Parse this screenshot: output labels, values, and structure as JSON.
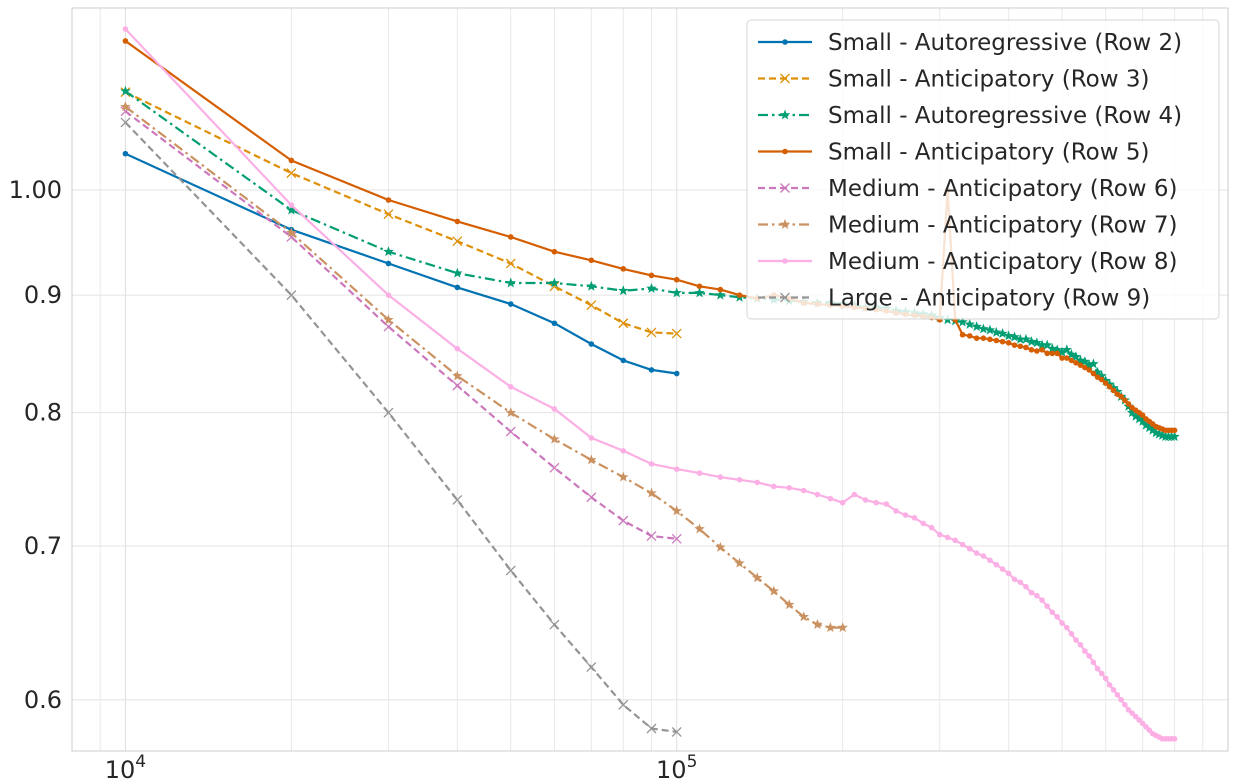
{
  "chart_data": {
    "type": "line",
    "title": "",
    "xlabel": "",
    "ylabel": "",
    "x_scale": "log",
    "y_scale": "log",
    "xlim": [
      8000,
      1000000
    ],
    "ylim": [
      0.57,
      1.2
    ],
    "x_ticks": [
      {
        "value": 10000,
        "base": "10",
        "exp": "4"
      },
      {
        "value": 100000,
        "base": "10",
        "exp": "5"
      }
    ],
    "y_ticks": [
      {
        "value": 0.6,
        "label": "0.6"
      },
      {
        "value": 0.7,
        "label": "0.7"
      },
      {
        "value": 0.8,
        "label": "0.8"
      },
      {
        "value": 0.9,
        "label": "0.9"
      },
      {
        "value": 1.0,
        "label": "1.00"
      }
    ],
    "grid": true,
    "legend_position": "top-right",
    "series": [
      {
        "name": "Small - Autoregressive (Row 2)",
        "color": "#0173b2",
        "dash": "solid",
        "marker": "dot",
        "x": [
          10000,
          20000,
          30000,
          40000,
          50000,
          60000,
          70000,
          80000,
          90000,
          100000
        ],
        "y": [
          1.037,
          0.961,
          0.929,
          0.907,
          0.892,
          0.875,
          0.857,
          0.843,
          0.835,
          0.832
        ]
      },
      {
        "name": "Small - Anticipatory (Row 3)",
        "color": "#de8f05",
        "dash": "dashed",
        "marker": "x",
        "x": [
          10000,
          20000,
          30000,
          40000,
          50000,
          60000,
          70000,
          80000,
          90000,
          100000
        ],
        "y": [
          1.103,
          1.017,
          0.976,
          0.95,
          0.929,
          0.908,
          0.891,
          0.875,
          0.867,
          0.866
        ]
      },
      {
        "name": "Small - Autoregressive (Row 4)",
        "color": "#029e73",
        "dash": "dashdot",
        "marker": "star",
        "x": [
          10000,
          20000,
          30000,
          40000,
          50000,
          60000,
          70000,
          80000,
          90000,
          100000,
          110000,
          120000,
          130000,
          140000,
          150000,
          160000,
          170000,
          180000,
          190000,
          200000,
          210000,
          220000,
          230000,
          240000,
          250000,
          260000,
          270000,
          280000,
          290000,
          300000,
          310000,
          320000,
          330000,
          340000,
          350000,
          360000,
          370000,
          380000,
          390000,
          400000,
          410000,
          420000,
          430000,
          440000,
          450000,
          460000,
          470000,
          480000,
          490000,
          500000,
          510000,
          520000,
          530000,
          540000,
          550000,
          560000,
          570000,
          580000,
          590000,
          600000,
          610000,
          620000,
          630000,
          640000,
          650000,
          660000,
          670000,
          680000,
          690000,
          700000,
          710000,
          720000,
          730000,
          740000,
          750000,
          760000,
          770000,
          780000,
          790000,
          800000
        ],
        "y": [
          1.104,
          0.98,
          0.94,
          0.92,
          0.911,
          0.911,
          0.908,
          0.904,
          0.906,
          0.902,
          0.902,
          0.9,
          0.898,
          0.897,
          0.896,
          0.895,
          0.894,
          0.893,
          0.893,
          0.892,
          0.891,
          0.889,
          0.889,
          0.888,
          0.886,
          0.885,
          0.884,
          0.883,
          0.882,
          0.88,
          0.878,
          0.877,
          0.876,
          0.874,
          0.872,
          0.87,
          0.869,
          0.867,
          0.866,
          0.864,
          0.863,
          0.861,
          0.861,
          0.859,
          0.858,
          0.856,
          0.856,
          0.853,
          0.852,
          0.85,
          0.852,
          0.848,
          0.846,
          0.843,
          0.842,
          0.839,
          0.84,
          0.833,
          0.83,
          0.826,
          0.823,
          0.82,
          0.817,
          0.813,
          0.81,
          0.805,
          0.8,
          0.797,
          0.795,
          0.793,
          0.79,
          0.788,
          0.786,
          0.784,
          0.783,
          0.782,
          0.781,
          0.781,
          0.781,
          0.781
        ]
      },
      {
        "name": "Small - Anticipatory (Row 5)",
        "color": "#d55e00",
        "dash": "solid",
        "marker": "dot",
        "x": [
          10000,
          20000,
          30000,
          40000,
          50000,
          60000,
          70000,
          80000,
          90000,
          100000,
          110000,
          120000,
          130000,
          140000,
          150000,
          160000,
          170000,
          180000,
          190000,
          200000,
          210000,
          220000,
          230000,
          240000,
          250000,
          260000,
          270000,
          280000,
          290000,
          300000,
          310000,
          320000,
          330000,
          340000,
          350000,
          360000,
          370000,
          380000,
          390000,
          400000,
          410000,
          420000,
          430000,
          440000,
          450000,
          460000,
          470000,
          480000,
          490000,
          500000,
          510000,
          520000,
          530000,
          540000,
          550000,
          560000,
          570000,
          580000,
          590000,
          600000,
          610000,
          620000,
          630000,
          640000,
          650000,
          660000,
          670000,
          680000,
          690000,
          700000,
          710000,
          720000,
          730000,
          740000,
          750000,
          760000,
          770000,
          780000,
          790000,
          800000
        ],
        "y": [
          1.161,
          1.03,
          0.99,
          0.969,
          0.954,
          0.94,
          0.932,
          0.924,
          0.918,
          0.914,
          0.908,
          0.905,
          0.9,
          0.897,
          0.9,
          0.897,
          0.893,
          0.892,
          0.891,
          0.89,
          0.889,
          0.888,
          0.887,
          0.886,
          0.884,
          0.883,
          0.882,
          0.881,
          0.88,
          0.878,
          1.0,
          0.878,
          0.865,
          0.864,
          0.862,
          0.862,
          0.861,
          0.86,
          0.859,
          0.858,
          0.856,
          0.855,
          0.854,
          0.852,
          0.851,
          0.852,
          0.849,
          0.849,
          0.849,
          0.845,
          0.845,
          0.843,
          0.841,
          0.839,
          0.837,
          0.835,
          0.832,
          0.829,
          0.827,
          0.824,
          0.821,
          0.818,
          0.815,
          0.813,
          0.81,
          0.807,
          0.804,
          0.802,
          0.8,
          0.798,
          0.795,
          0.793,
          0.791,
          0.789,
          0.788,
          0.787,
          0.786,
          0.786,
          0.786,
          0.786
        ]
      },
      {
        "name": "Medium - Anticipatory (Row 6)",
        "color": "#cc78bc",
        "dash": "dashed",
        "marker": "x",
        "x": [
          10000,
          20000,
          30000,
          40000,
          50000,
          60000,
          70000,
          80000,
          90000,
          100000
        ],
        "y": [
          1.082,
          0.954,
          0.872,
          0.822,
          0.785,
          0.757,
          0.735,
          0.718,
          0.707,
          0.705
        ]
      },
      {
        "name": "Medium - Anticipatory (Row 7)",
        "color": "#ca9161",
        "dash": "dashdot",
        "marker": "star",
        "x": [
          10000,
          20000,
          30000,
          40000,
          50000,
          60000,
          70000,
          80000,
          90000,
          100000,
          110000,
          120000,
          130000,
          140000,
          150000,
          160000,
          170000,
          180000,
          190000,
          200000
        ],
        "y": [
          1.087,
          0.958,
          0.878,
          0.83,
          0.8,
          0.779,
          0.763,
          0.75,
          0.738,
          0.725,
          0.712,
          0.699,
          0.688,
          0.678,
          0.669,
          0.66,
          0.652,
          0.647,
          0.645,
          0.645
        ]
      },
      {
        "name": "Medium - Anticipatory (Row 8)",
        "color": "#fbafe4",
        "dash": "solid",
        "marker": "dot",
        "x": [
          10000,
          20000,
          30000,
          40000,
          50000,
          60000,
          70000,
          80000,
          90000,
          100000,
          110000,
          120000,
          130000,
          140000,
          150000,
          160000,
          170000,
          180000,
          190000,
          200000,
          210000,
          220000,
          230000,
          240000,
          250000,
          260000,
          270000,
          280000,
          290000,
          300000,
          310000,
          320000,
          330000,
          340000,
          350000,
          360000,
          370000,
          380000,
          390000,
          400000,
          410000,
          420000,
          430000,
          440000,
          450000,
          460000,
          470000,
          480000,
          490000,
          500000,
          510000,
          520000,
          530000,
          540000,
          550000,
          560000,
          570000,
          580000,
          590000,
          600000,
          610000,
          620000,
          630000,
          640000,
          650000,
          660000,
          670000,
          680000,
          690000,
          700000,
          710000,
          720000,
          730000,
          740000,
          750000,
          760000,
          770000,
          780000,
          790000,
          800000
        ],
        "y": [
          1.175,
          0.985,
          0.9,
          0.853,
          0.821,
          0.803,
          0.78,
          0.77,
          0.76,
          0.756,
          0.753,
          0.75,
          0.748,
          0.746,
          0.743,
          0.742,
          0.74,
          0.737,
          0.734,
          0.731,
          0.737,
          0.733,
          0.731,
          0.73,
          0.725,
          0.722,
          0.72,
          0.716,
          0.713,
          0.708,
          0.706,
          0.704,
          0.701,
          0.698,
          0.695,
          0.693,
          0.69,
          0.687,
          0.684,
          0.681,
          0.677,
          0.675,
          0.672,
          0.668,
          0.666,
          0.663,
          0.659,
          0.655,
          0.652,
          0.648,
          0.645,
          0.641,
          0.637,
          0.634,
          0.63,
          0.627,
          0.623,
          0.619,
          0.616,
          0.613,
          0.609,
          0.606,
          0.603,
          0.6,
          0.597,
          0.594,
          0.592,
          0.59,
          0.588,
          0.586,
          0.584,
          0.582,
          0.58,
          0.579,
          0.578,
          0.577,
          0.577,
          0.577,
          0.577,
          0.577
        ]
      },
      {
        "name": "Large - Anticipatory (Row 9)",
        "color": "#949494",
        "dash": "dashed",
        "marker": "x",
        "x": [
          10000,
          20000,
          30000,
          40000,
          50000,
          60000,
          70000,
          80000,
          90000,
          100000
        ],
        "y": [
          1.07,
          0.9,
          0.8,
          0.733,
          0.683,
          0.647,
          0.62,
          0.597,
          0.583,
          0.581
        ]
      }
    ]
  }
}
